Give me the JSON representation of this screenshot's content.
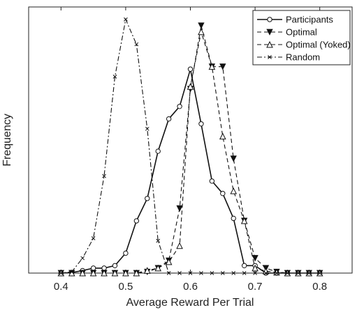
{
  "chart_data": {
    "type": "line",
    "title": "",
    "xlabel": "Average Reward Per Trial",
    "ylabel": "Frequency",
    "xlim": [
      0.35,
      0.85
    ],
    "ylim": [
      0,
      1.07
    ],
    "xticks": [
      0.4,
      0.5,
      0.6,
      0.7,
      0.8
    ],
    "xtick_labels": [
      "0.4",
      "0.5",
      "0.6",
      "0.7",
      "0.8"
    ],
    "yticks_shown": false,
    "grid": false,
    "legend_position": "top-right",
    "x": [
      0.4,
      0.416667,
      0.433333,
      0.45,
      0.466667,
      0.483333,
      0.5,
      0.516667,
      0.533333,
      0.55,
      0.566667,
      0.583333,
      0.6,
      0.616667,
      0.633333,
      0.65,
      0.666667,
      0.683333,
      0.7,
      0.716667,
      0.733333,
      0.75,
      0.766667,
      0.783333,
      0.8
    ],
    "series": [
      {
        "name": "Participants",
        "style": "solid",
        "marker": "circle-open",
        "values": [
          0.0,
          0.002,
          0.01,
          0.02,
          0.02,
          0.03,
          0.08,
          0.21,
          0.3,
          0.49,
          0.62,
          0.67,
          0.82,
          0.6,
          0.37,
          0.32,
          0.22,
          0.03,
          0.03,
          0.0,
          0.0,
          0.0,
          0.0,
          0.0,
          0.0
        ]
      },
      {
        "name": "Optimal",
        "style": "dashed",
        "marker": "triangle-down-filled",
        "values": [
          0.0,
          0.0,
          0.0,
          0.0,
          0.0,
          0.0,
          0.0,
          0.0,
          0.005,
          0.02,
          0.05,
          0.26,
          0.74,
          0.995,
          0.83,
          0.83,
          0.46,
          0.21,
          0.06,
          0.02,
          0.005,
          0.0,
          0.0,
          0.0,
          0.0
        ]
      },
      {
        "name": "Optimal (Yoked)",
        "style": "dashed",
        "marker": "triangle-up-open",
        "values": [
          0.0,
          0.0,
          0.0,
          0.0,
          0.0,
          0.0,
          0.0,
          0.0,
          0.01,
          0.02,
          0.045,
          0.11,
          0.75,
          0.97,
          0.83,
          0.55,
          0.33,
          0.21,
          0.02,
          0.008,
          0.003,
          0.0,
          0.0,
          0.0,
          0.0
        ]
      },
      {
        "name": "Random",
        "style": "dash-dot",
        "marker": "x",
        "values": [
          0.0,
          0.005,
          0.06,
          0.14,
          0.39,
          0.79,
          1.02,
          0.92,
          0.58,
          0.13,
          0.0,
          0.0,
          0.0,
          0.0,
          0.0,
          0.0,
          0.0,
          0.0,
          0.0,
          0.0,
          0.0,
          0.0,
          0.0,
          0.0,
          0.0
        ]
      }
    ]
  }
}
